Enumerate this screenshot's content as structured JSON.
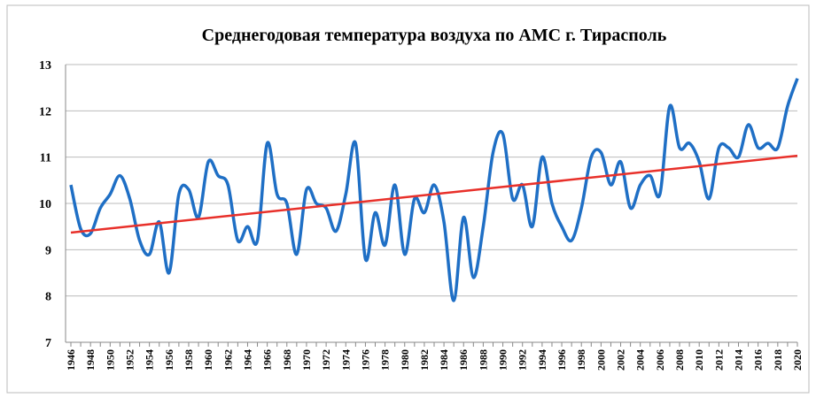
{
  "chart_data": {
    "type": "line",
    "title": "Среднегодовая  температура воздуха по АМС г. Тирасполь",
    "categories": [
      "1946",
      null,
      "1948",
      null,
      "1950",
      null,
      "1952",
      null,
      "1954",
      null,
      "1956",
      null,
      "1958",
      null,
      "1960",
      null,
      "1962",
      null,
      "1964",
      null,
      "1966",
      null,
      "1968",
      null,
      "1970",
      null,
      "1972",
      null,
      "1974",
      null,
      "1976",
      null,
      "1978",
      null,
      "1980",
      null,
      "1982",
      null,
      "1984",
      null,
      "1986",
      null,
      "1988",
      null,
      "1990",
      null,
      "1992",
      null,
      "1994",
      null,
      "1996",
      null,
      "1998",
      null,
      "2000",
      null,
      "2002",
      null,
      "2004",
      null,
      "2006",
      null,
      "2008",
      null,
      "2010",
      null,
      "2012",
      null,
      "2014",
      null,
      "2016",
      null,
      "2018",
      null,
      "2020"
    ],
    "series": [
      {
        "color": "#1f6fc5",
        "values": [
          10.4,
          9.45,
          9.35,
          9.9,
          10.2,
          10.6,
          10.1,
          9.2,
          8.9,
          9.6,
          8.5,
          10.2,
          10.3,
          9.7,
          10.9,
          10.6,
          10.4,
          9.2,
          9.5,
          9.2,
          11.3,
          10.2,
          10.0,
          8.9,
          10.3,
          10.0,
          9.9,
          9.4,
          10.2,
          11.3,
          8.8,
          9.8,
          9.1,
          10.4,
          8.9,
          10.1,
          9.8,
          10.4,
          9.6,
          7.9,
          9.7,
          8.4,
          9.5,
          11.1,
          11.5,
          10.1,
          10.4,
          9.5,
          11.0,
          10.0,
          9.5,
          9.2,
          9.9,
          11.0,
          11.1,
          10.4,
          10.9,
          9.9,
          10.4,
          10.6,
          10.2,
          12.1,
          11.2,
          11.3,
          10.9,
          10.1,
          11.2,
          11.2,
          11.0,
          11.7,
          11.2,
          11.3,
          11.2,
          12.1,
          12.7
        ]
      }
    ],
    "trend_line": {
      "color": "#e8302a",
      "start": 9.37,
      "end": 11.03
    },
    "ylim": [
      7,
      13
    ],
    "yticks": [
      7,
      8,
      9,
      10,
      11,
      12,
      13
    ],
    "grid": true
  }
}
